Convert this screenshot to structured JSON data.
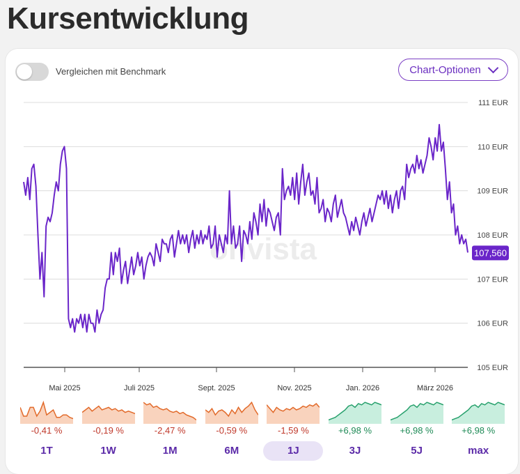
{
  "page": {
    "title": "Kursentwicklung"
  },
  "controls": {
    "benchmark_label": "Vergleichen mit Benchmark",
    "options_label": "Chart-Optionen"
  },
  "watermark": "onvista",
  "chart_data": {
    "type": "line",
    "title": "",
    "currency": "EUR",
    "ylim": [
      105,
      111
    ],
    "yticks": [
      "105 EUR",
      "106 EUR",
      "107 EUR",
      "108 EUR",
      "109 EUR",
      "110 EUR",
      "111 EUR"
    ],
    "xticks": [
      "Mai 2025",
      "Juli 2025",
      "Sept. 2025",
      "Nov. 2025",
      "Jan. 2026",
      "März 2026"
    ],
    "current_value_label": "107,560",
    "series": [
      {
        "values": [
          109.2,
          108.9,
          109.3,
          108.8,
          109.5,
          109.6,
          109.1,
          108.0,
          107.0,
          107.6,
          106.6,
          108.2,
          108.4,
          108.3,
          108.5,
          108.9,
          109.2,
          109.0,
          109.6,
          109.9,
          110.0,
          109.5,
          106.1,
          105.9,
          106.1,
          105.8,
          106.1,
          106.0,
          106.2,
          105.9,
          106.2,
          105.8,
          106.2,
          106.0,
          106.0,
          105.8,
          106.3,
          106.0,
          106.2,
          106.3,
          106.8,
          107.0,
          107.0,
          107.6,
          107.1,
          107.6,
          107.4,
          107.7,
          106.9,
          107.2,
          107.4,
          106.9,
          107.2,
          107.5,
          107.1,
          107.3,
          107.6,
          107.3,
          107.5,
          107.0,
          107.3,
          107.5,
          107.6,
          107.5,
          107.3,
          107.8,
          107.6,
          107.4,
          107.9,
          107.8,
          107.8,
          107.6,
          107.9,
          108.0,
          107.5,
          107.8,
          108.1,
          107.8,
          108.0,
          107.8,
          108.0,
          107.6,
          107.9,
          108.1,
          107.7,
          108.0,
          107.8,
          108.1,
          107.8,
          108.0,
          107.9,
          108.2,
          107.7,
          107.8,
          108.2,
          107.5,
          108.0,
          107.8,
          107.6,
          108.0,
          107.8,
          109.0,
          107.8,
          108.2,
          107.7,
          107.8,
          108.2,
          107.4,
          108.1,
          108.0,
          107.8,
          108.3,
          107.9,
          108.5,
          108.3,
          108.0,
          108.7,
          108.3,
          108.8,
          108.2,
          108.6,
          108.5,
          108.3,
          108.1,
          108.4,
          108.5,
          108.0,
          109.5,
          108.8,
          109.0,
          109.1,
          108.9,
          109.3,
          108.8,
          109.4,
          108.7,
          109.2,
          109.6,
          108.9,
          109.2,
          109.4,
          108.9,
          109.0,
          108.7,
          109.3,
          108.5,
          108.6,
          108.8,
          108.3,
          108.6,
          108.5,
          108.3,
          108.7,
          108.9,
          108.4,
          108.6,
          108.8,
          108.5,
          108.4,
          108.2,
          108.0,
          108.3,
          108.1,
          108.4,
          108.2,
          108.0,
          108.3,
          108.5,
          108.2,
          108.4,
          108.6,
          108.3,
          108.5,
          108.7,
          108.9,
          108.8,
          109.0,
          108.7,
          109.0,
          108.6,
          108.9,
          108.5,
          108.8,
          109.0,
          108.6,
          109.0,
          109.1,
          108.8,
          109.6,
          109.3,
          109.5,
          109.6,
          109.4,
          109.8,
          109.5,
          109.7,
          109.4,
          109.6,
          109.8,
          110.2,
          110.0,
          109.7,
          110.2,
          109.9,
          110.5,
          109.9,
          110.1,
          109.5,
          108.8,
          109.2,
          108.5,
          108.7,
          108.0,
          108.2,
          107.8,
          108.0,
          107.8,
          107.9,
          107.6
        ]
      }
    ]
  },
  "periods": [
    {
      "label": "1T",
      "perf": "-0,41 %",
      "dir": "down",
      "active": false
    },
    {
      "label": "1W",
      "perf": "-0,19 %",
      "dir": "down",
      "active": false
    },
    {
      "label": "1M",
      "perf": "-2,47 %",
      "dir": "down",
      "active": false
    },
    {
      "label": "6M",
      "perf": "-0,59 %",
      "dir": "down",
      "active": false
    },
    {
      "label": "1J",
      "perf": "-1,59 %",
      "dir": "down",
      "active": true
    },
    {
      "label": "3J",
      "perf": "+6,98 %",
      "dir": "up",
      "active": false
    },
    {
      "label": "5J",
      "perf": "+6,98 %",
      "dir": "up",
      "active": false
    },
    {
      "label": "max",
      "perf": "+6,98 %",
      "dir": "up",
      "active": false
    }
  ],
  "colors": {
    "line": "#6a25c9",
    "label_bg": "#6a25c9",
    "down_fill": "#f9d3bd",
    "down_line": "#e26a2a",
    "down_text": "#c0392b",
    "up_fill": "#c8eede",
    "up_line": "#27a06c",
    "up_text": "#1e8a56"
  }
}
